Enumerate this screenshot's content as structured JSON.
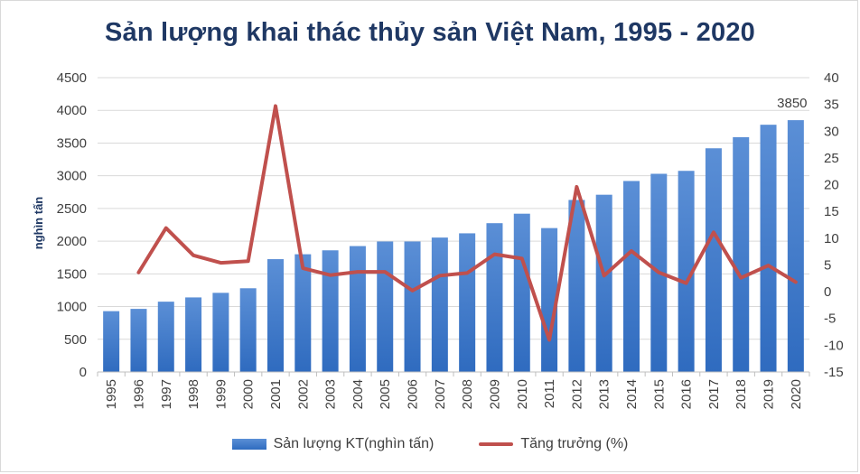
{
  "chart_data": {
    "type": "bar",
    "title": "Sản lượng khai thác thủy sản Việt Nam, 1995 - 2020",
    "ylabel": "nghìn tấn",
    "categories": [
      "1995",
      "1996",
      "1997",
      "1998",
      "1999",
      "2000",
      "2001",
      "2002",
      "2003",
      "2004",
      "2005",
      "2006",
      "2007",
      "2008",
      "2009",
      "2010",
      "2011",
      "2012",
      "2013",
      "2014",
      "2015",
      "2016",
      "2017",
      "2018",
      "2019",
      "2020"
    ],
    "series": [
      {
        "name": "Sản lượng KT(nghìn tấn)",
        "type": "bar",
        "axis": "left",
        "values": [
          930,
          965,
          1075,
          1140,
          1210,
          1280,
          1725,
          1800,
          1860,
          1925,
          1995,
          1995,
          2055,
          2120,
          2275,
          2420,
          2200,
          2630,
          2710,
          2920,
          3030,
          3075,
          3420,
          3590,
          3780,
          3850
        ]
      },
      {
        "name": "Tăng trưởng (%)",
        "type": "line",
        "axis": "right",
        "values": [
          null,
          3.6,
          11.9,
          6.8,
          5.4,
          5.7,
          34.7,
          4.4,
          3.1,
          3.7,
          3.7,
          0.2,
          3.0,
          3.5,
          7.0,
          6.2,
          -9.0,
          19.6,
          3.0,
          7.6,
          3.6,
          1.6,
          11.1,
          2.6,
          4.9,
          1.8
        ]
      }
    ],
    "ylim": [
      0,
      4500
    ],
    "y_ticks": [
      0,
      500,
      1000,
      1500,
      2000,
      2500,
      3000,
      3500,
      4000,
      4500
    ],
    "y2lim": [
      -15,
      40
    ],
    "y2_ticks": [
      -15,
      -10,
      -5,
      0,
      5,
      10,
      15,
      20,
      25,
      30,
      35,
      40
    ],
    "data_labels": [
      {
        "category": "2020",
        "series": "Sản lượng KT(nghìn tấn)",
        "text": "3850"
      }
    ],
    "grid": true,
    "legend_position": "bottom",
    "colors": {
      "bar": "#2f6bbf",
      "bar_light": "#5b8fd6",
      "line": "#c0504d",
      "title": "#1f3864",
      "grid": "#d9d9d9",
      "text": "#404040"
    }
  }
}
